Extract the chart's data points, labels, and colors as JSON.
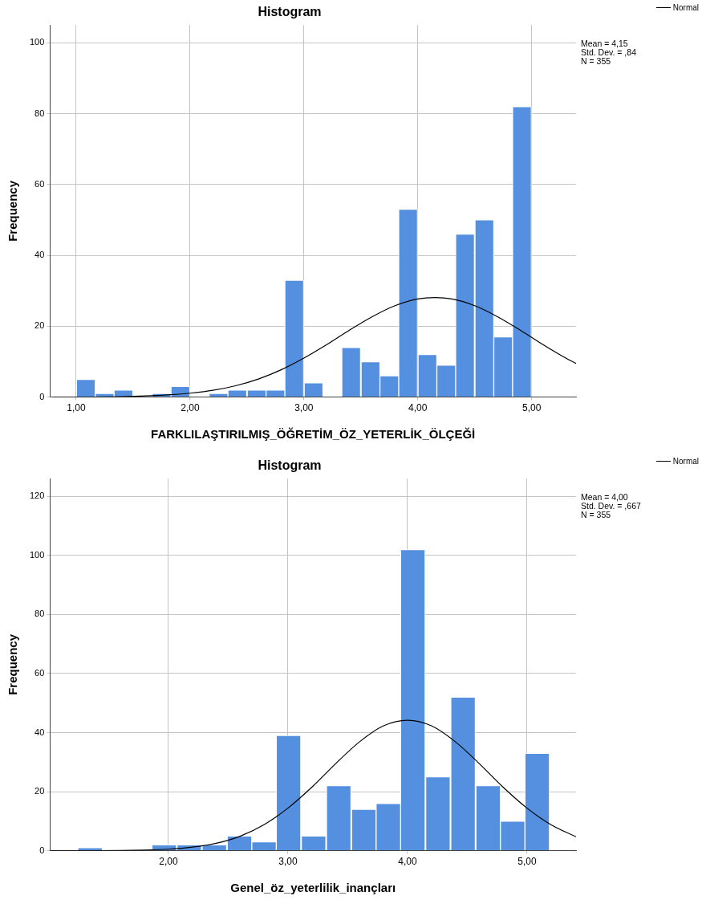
{
  "chart_data": [
    {
      "type": "histogram",
      "title": "Histogram",
      "xlabel": "FARKLILAŞTIRILMIŞ_ÖĞRETİM_ÖZ_YETERLİK_ÖLÇEĞİ",
      "ylabel": "Frequency",
      "color": "#5590e0",
      "bins": [
        1.0,
        1.17,
        1.33,
        1.5,
        1.67,
        1.83,
        2.0,
        2.17,
        2.33,
        2.5,
        2.67,
        2.83,
        3.0,
        3.17,
        3.33,
        3.5,
        3.67,
        3.83,
        4.0,
        4.17,
        4.33,
        4.5,
        4.67,
        4.83,
        5.0
      ],
      "values": [
        5,
        1,
        2,
        0,
        1,
        3,
        0,
        1,
        2,
        2,
        2,
        33,
        4,
        0,
        14,
        10,
        6,
        53,
        12,
        9,
        46,
        50,
        17,
        82
      ],
      "series": [
        {
          "type": "line",
          "name": "Normal",
          "color": "#000000",
          "x": [
            0.8,
            1.0,
            1.4,
            1.8,
            2.0,
            2.2,
            2.4,
            2.6,
            2.8,
            3.0,
            3.2,
            3.4,
            3.6,
            3.8,
            4.0,
            4.15,
            4.3,
            4.5,
            4.7,
            4.9,
            5.1,
            5.3,
            5.39
          ],
          "values": [
            0,
            0,
            0.1,
            0.6,
            1.1,
            1.9,
            3.2,
            5.1,
            7.7,
            11.0,
            14.8,
            18.9,
            22.7,
            25.8,
            27.7,
            28.1,
            27.7,
            25.8,
            22.7,
            18.9,
            14.8,
            11.0,
            9.5
          ]
        }
      ],
      "xlim": [
        0.77,
        5.39
      ],
      "xticks": [
        {
          "value": 1,
          "label": "1,00"
        },
        {
          "value": 2,
          "label": "2,00"
        },
        {
          "value": 3,
          "label": "3,00"
        },
        {
          "value": 4,
          "label": "4,00"
        },
        {
          "value": 5,
          "label": "5,00"
        }
      ],
      "ylim": [
        0,
        105
      ],
      "yticks": [
        0,
        20,
        40,
        60,
        80,
        100
      ],
      "grid": true,
      "legend": "top right",
      "marker": "none",
      "line_style": "solid",
      "annotations": [
        "Mean = 4,15",
        "Std. Dev. = ,84",
        "N = 355"
      ]
    },
    {
      "type": "histogram",
      "title": "Histogram",
      "xlabel": "Genel_öz_yeterlilik_inançları",
      "ylabel": "Frequency",
      "color": "#5590e0",
      "bins": [
        1.24,
        1.45,
        1.66,
        1.86,
        2.07,
        2.28,
        2.49,
        2.7,
        2.9,
        3.11,
        3.32,
        3.53,
        3.74,
        3.94,
        4.15,
        4.36,
        4.57,
        4.78,
        4.98,
        5.19
      ],
      "values": [
        1,
        0,
        0,
        2,
        2,
        2,
        5,
        3,
        39,
        5,
        22,
        14,
        16,
        102,
        25,
        52,
        22,
        10,
        33
      ],
      "series": [
        {
          "type": "line",
          "name": "Normal",
          "color": "#000000",
          "x": [
            1.01,
            1.4,
            1.8,
            2.0,
            2.2,
            2.4,
            2.6,
            2.8,
            3.0,
            3.2,
            3.4,
            3.6,
            3.8,
            4.0,
            4.2,
            4.4,
            4.6,
            4.8,
            5.0,
            5.2,
            5.41
          ],
          "values": [
            0,
            0,
            0.2,
            0.5,
            1.2,
            2.5,
            4.9,
            8.8,
            14.4,
            21.5,
            29.5,
            36.9,
            42.3,
            44.2,
            42.3,
            36.9,
            29.5,
            21.5,
            14.4,
            8.8,
            4.7
          ]
        }
      ],
      "xlim": [
        1.01,
        5.41
      ],
      "xticks": [
        {
          "value": 2,
          "label": "2,00"
        },
        {
          "value": 3,
          "label": "3,00"
        },
        {
          "value": 4,
          "label": "4,00"
        },
        {
          "value": 5,
          "label": "5,00"
        }
      ],
      "ylim": [
        0,
        126
      ],
      "yticks": [
        0,
        20,
        40,
        60,
        80,
        100,
        120
      ],
      "grid": true,
      "legend": "top right",
      "marker": "none",
      "line_style": "solid",
      "annotations": [
        "Mean = 4,00",
        "Std. Dev. = ,667",
        "N = 355"
      ]
    }
  ]
}
